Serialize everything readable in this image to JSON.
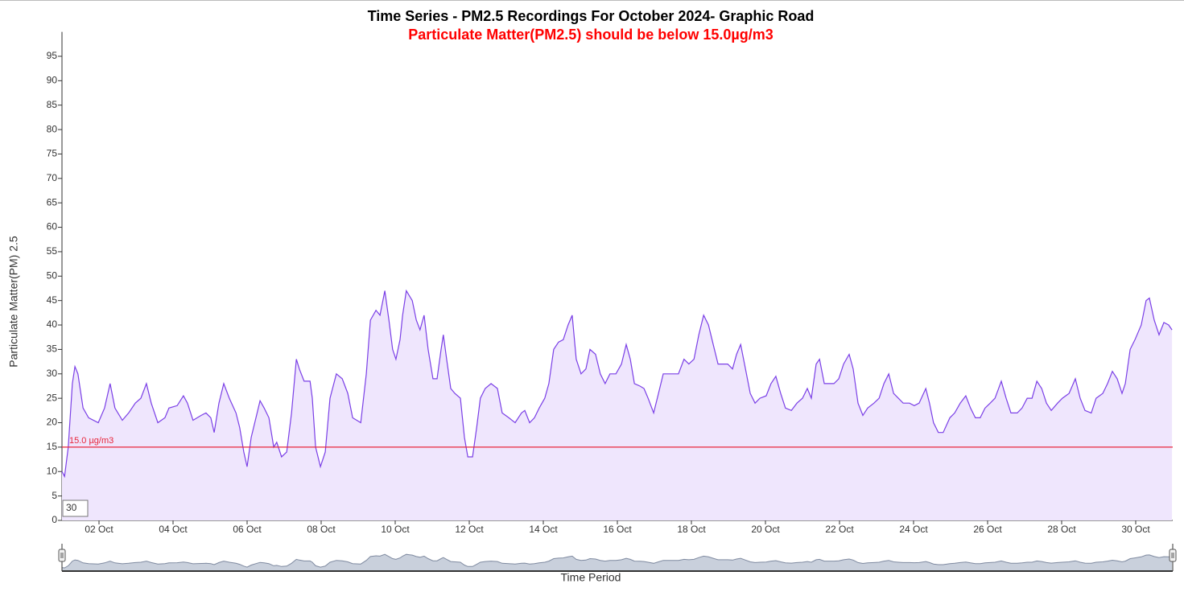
{
  "chart_data": {
    "type": "line",
    "title": "Time Series - PM2.5 Recordings For October 2024- Graphic Road",
    "subtitle": "Particulate Matter(PM2.5) should be below 15.0µg/m3",
    "x_label": "Time Period",
    "y_label": "Particulate Matter(PM) 2.5",
    "xlim": [
      1,
      31
    ],
    "xticks": [
      {
        "value": 2,
        "label": "02 Oct"
      },
      {
        "value": 4,
        "label": "04 Oct"
      },
      {
        "value": 6,
        "label": "06 Oct"
      },
      {
        "value": 8,
        "label": "08 Oct"
      },
      {
        "value": 10,
        "label": "10 Oct"
      },
      {
        "value": 12,
        "label": "12 Oct"
      },
      {
        "value": 14,
        "label": "14 Oct"
      },
      {
        "value": 16,
        "label": "16 Oct"
      },
      {
        "value": 18,
        "label": "18 Oct"
      },
      {
        "value": 20,
        "label": "20 Oct"
      },
      {
        "value": 22,
        "label": "22 Oct"
      },
      {
        "value": 24,
        "label": "24 Oct"
      },
      {
        "value": 26,
        "label": "26 Oct"
      },
      {
        "value": 28,
        "label": "28 Oct"
      },
      {
        "value": 30,
        "label": "30 Oct"
      }
    ],
    "ylim": [
      0,
      100
    ],
    "yticks": [
      0,
      5,
      10,
      15,
      20,
      25,
      30,
      35,
      40,
      45,
      50,
      55,
      60,
      65,
      70,
      75,
      80,
      85,
      90,
      95
    ],
    "grid": false,
    "threshold": {
      "value": 15,
      "label": "15.0 µg/m3",
      "color": "#e8253b"
    },
    "x": [
      1.0,
      1.07,
      1.17,
      1.28,
      1.35,
      1.43,
      1.57,
      1.72,
      1.98,
      2.15,
      2.3,
      2.43,
      2.63,
      2.8,
      2.98,
      3.13,
      3.28,
      3.41,
      3.59,
      3.78,
      3.89,
      4.11,
      4.28,
      4.39,
      4.54,
      4.76,
      4.89,
      5.02,
      5.11,
      5.24,
      5.37,
      5.52,
      5.7,
      5.8,
      5.91,
      6.0,
      6.11,
      6.24,
      6.35,
      6.46,
      6.59,
      6.72,
      6.8,
      6.93,
      7.07,
      7.2,
      7.33,
      7.41,
      7.54,
      7.7,
      7.76,
      7.85,
      7.98,
      8.11,
      8.24,
      8.41,
      8.57,
      8.72,
      8.85,
      9.07,
      9.22,
      9.33,
      9.48,
      9.59,
      9.72,
      9.83,
      9.93,
      10.02,
      10.13,
      10.2,
      10.3,
      10.46,
      10.57,
      10.67,
      10.78,
      10.89,
      11.02,
      11.13,
      11.24,
      11.3,
      11.39,
      11.5,
      11.61,
      11.76,
      11.87,
      11.96,
      12.09,
      12.2,
      12.3,
      12.43,
      12.59,
      12.76,
      12.89,
      13.07,
      13.24,
      13.41,
      13.5,
      13.63,
      13.76,
      13.89,
      14.04,
      14.15,
      14.28,
      14.41,
      14.54,
      14.67,
      14.78,
      14.89,
      15.02,
      15.15,
      15.26,
      15.41,
      15.54,
      15.67,
      15.8,
      15.96,
      16.11,
      16.24,
      16.35,
      16.46,
      16.61,
      16.72,
      16.83,
      16.98,
      17.11,
      17.24,
      17.37,
      17.52,
      17.65,
      17.8,
      17.93,
      18.07,
      18.2,
      18.33,
      18.46,
      18.59,
      18.72,
      18.85,
      18.98,
      19.11,
      19.22,
      19.33,
      19.46,
      19.59,
      19.72,
      19.85,
      20.02,
      20.15,
      20.28,
      20.41,
      20.54,
      20.7,
      20.85,
      21.0,
      21.13,
      21.24,
      21.37,
      21.46,
      21.59,
      21.72,
      21.85,
      21.98,
      22.11,
      22.26,
      22.37,
      22.5,
      22.63,
      22.76,
      22.93,
      23.07,
      23.2,
      23.33,
      23.46,
      23.59,
      23.72,
      23.89,
      24.02,
      24.15,
      24.33,
      24.43,
      24.54,
      24.67,
      24.8,
      24.98,
      25.11,
      25.26,
      25.41,
      25.54,
      25.67,
      25.8,
      25.93,
      26.07,
      26.2,
      26.37,
      26.5,
      26.63,
      26.8,
      26.93,
      27.07,
      27.2,
      27.33,
      27.46,
      27.59,
      27.72,
      27.89,
      28.02,
      28.2,
      28.37,
      28.5,
      28.63,
      28.8,
      28.93,
      29.11,
      29.24,
      29.37,
      29.5,
      29.63,
      29.72,
      29.85,
      29.98,
      30.15,
      30.28,
      30.37,
      30.5,
      30.63,
      30.76,
      30.89,
      30.98
    ],
    "series": [
      {
        "color": "#7a3fe6",
        "fill": "#efe6fd",
        "values": [
          10,
          9,
          15,
          28,
          31.5,
          30,
          23,
          21,
          20,
          23,
          28,
          23,
          20.5,
          22,
          24,
          25,
          28,
          24,
          20,
          21,
          23,
          23.5,
          25.5,
          24,
          20.5,
          21.5,
          22,
          21,
          18,
          24,
          28,
          25,
          22,
          19,
          14,
          11,
          17,
          21,
          24.5,
          23,
          21,
          15,
          16,
          13,
          14,
          22,
          33,
          31,
          28.5,
          28.5,
          25,
          15,
          11,
          14,
          25,
          30,
          29,
          26,
          21,
          20,
          30,
          41,
          43,
          42,
          47,
          41,
          35,
          33,
          37,
          42,
          47,
          45,
          41,
          39,
          42,
          35,
          29,
          29,
          35,
          38,
          33,
          27,
          26,
          25,
          17,
          13,
          13,
          19,
          25,
          27,
          28,
          27,
          22,
          21,
          20,
          22,
          22.5,
          20,
          21,
          23,
          25,
          28,
          35,
          36.5,
          37,
          40,
          42,
          33,
          30,
          31,
          35,
          34,
          30,
          28,
          30,
          30,
          32,
          36,
          33,
          28,
          27.5,
          27,
          25,
          22,
          26,
          30,
          30,
          30,
          30,
          33,
          32,
          33,
          38,
          42,
          40,
          36,
          32,
          32,
          32,
          31,
          34,
          36,
          31,
          26,
          24,
          25,
          25.5,
          28,
          29.5,
          26,
          23,
          22.5,
          24,
          25,
          27,
          25,
          32,
          33,
          28,
          28,
          28,
          29,
          32,
          34,
          31,
          24,
          21.5,
          23,
          24,
          25,
          28,
          30,
          26,
          25,
          24,
          24,
          23.5,
          24,
          27,
          24,
          20,
          18,
          18,
          21,
          22,
          24,
          25.5,
          23,
          21,
          21,
          23,
          24,
          25,
          28.5,
          25,
          22,
          22,
          23,
          25,
          25,
          28.5,
          27,
          24,
          22.5,
          24,
          25,
          26,
          29,
          25,
          22.5,
          22,
          25,
          26,
          28,
          30.5,
          29,
          26,
          28,
          35,
          37,
          40,
          45,
          45.5,
          41,
          38,
          40.5,
          40,
          39
        ]
      }
    ]
  },
  "period_input": "30"
}
